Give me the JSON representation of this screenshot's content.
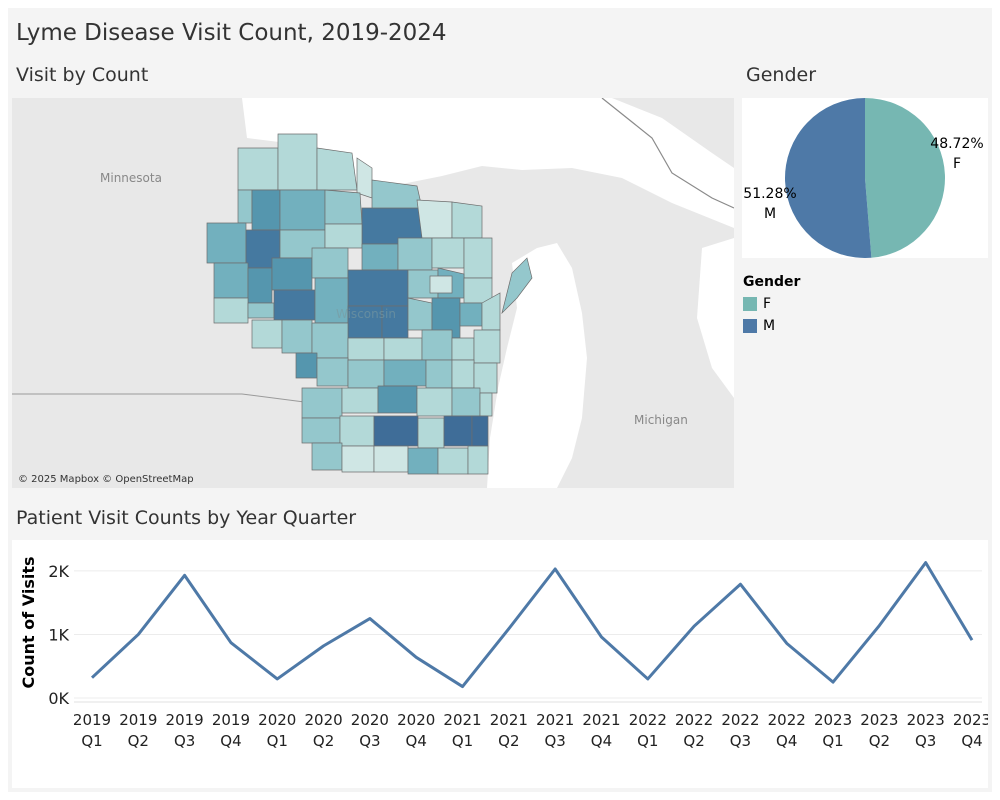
{
  "title": "Lyme Disease Visit Count, 2019-2024",
  "map": {
    "title": "Visit by Count",
    "labels": {
      "minnesota": "Minnesota",
      "michigan": "Michigan",
      "wisconsin": "Wisconsin"
    },
    "attribution": "© 2025 Mapbox © OpenStreetMap"
  },
  "gender": {
    "title": "Gender",
    "legend_title": "Gender",
    "legend": [
      {
        "label": "F",
        "color": "#76b7b2"
      },
      {
        "label": "M",
        "color": "#4e79a7"
      }
    ]
  },
  "line": {
    "title": "Patient Visit Counts by Year Quarter"
  },
  "chart_data": [
    {
      "type": "pie",
      "title": "Gender",
      "slices": [
        {
          "label": "F",
          "value": 48.72,
          "display": "48.72%",
          "color": "#76b7b2"
        },
        {
          "label": "M",
          "value": 51.28,
          "display": "51.28%",
          "color": "#4e79a7"
        }
      ],
      "legend_placement": "below"
    },
    {
      "type": "line",
      "title": "Patient Visit Counts by Year Quarter",
      "ylabel": "Count of Visits",
      "xlabel": "",
      "ylim": [
        0,
        2250
      ],
      "yticks": [
        {
          "value": 0,
          "label": "0K"
        },
        {
          "value": 1000,
          "label": "1K"
        },
        {
          "value": 2000,
          "label": "2K"
        }
      ],
      "categories": [
        [
          "2019",
          "Q1"
        ],
        [
          "2019",
          "Q2"
        ],
        [
          "2019",
          "Q3"
        ],
        [
          "2019",
          "Q4"
        ],
        [
          "2020",
          "Q1"
        ],
        [
          "2020",
          "Q2"
        ],
        [
          "2020",
          "Q3"
        ],
        [
          "2020",
          "Q4"
        ],
        [
          "2021",
          "Q1"
        ],
        [
          "2021",
          "Q2"
        ],
        [
          "2021",
          "Q3"
        ],
        [
          "2021",
          "Q4"
        ],
        [
          "2022",
          "Q1"
        ],
        [
          "2022",
          "Q2"
        ],
        [
          "2022",
          "Q3"
        ],
        [
          "2022",
          "Q4"
        ],
        [
          "2023",
          "Q1"
        ],
        [
          "2023",
          "Q2"
        ],
        [
          "2023",
          "Q3"
        ],
        [
          "2023",
          "Q4"
        ]
      ],
      "series": [
        {
          "color": "#4e79a7",
          "values": [
            320,
            1000,
            1930,
            870,
            300,
            820,
            1250,
            640,
            180,
            1090,
            2030,
            960,
            300,
            1130,
            1790,
            860,
            250,
            1140,
            2130,
            910
          ]
        }
      ],
      "grid": true
    }
  ]
}
